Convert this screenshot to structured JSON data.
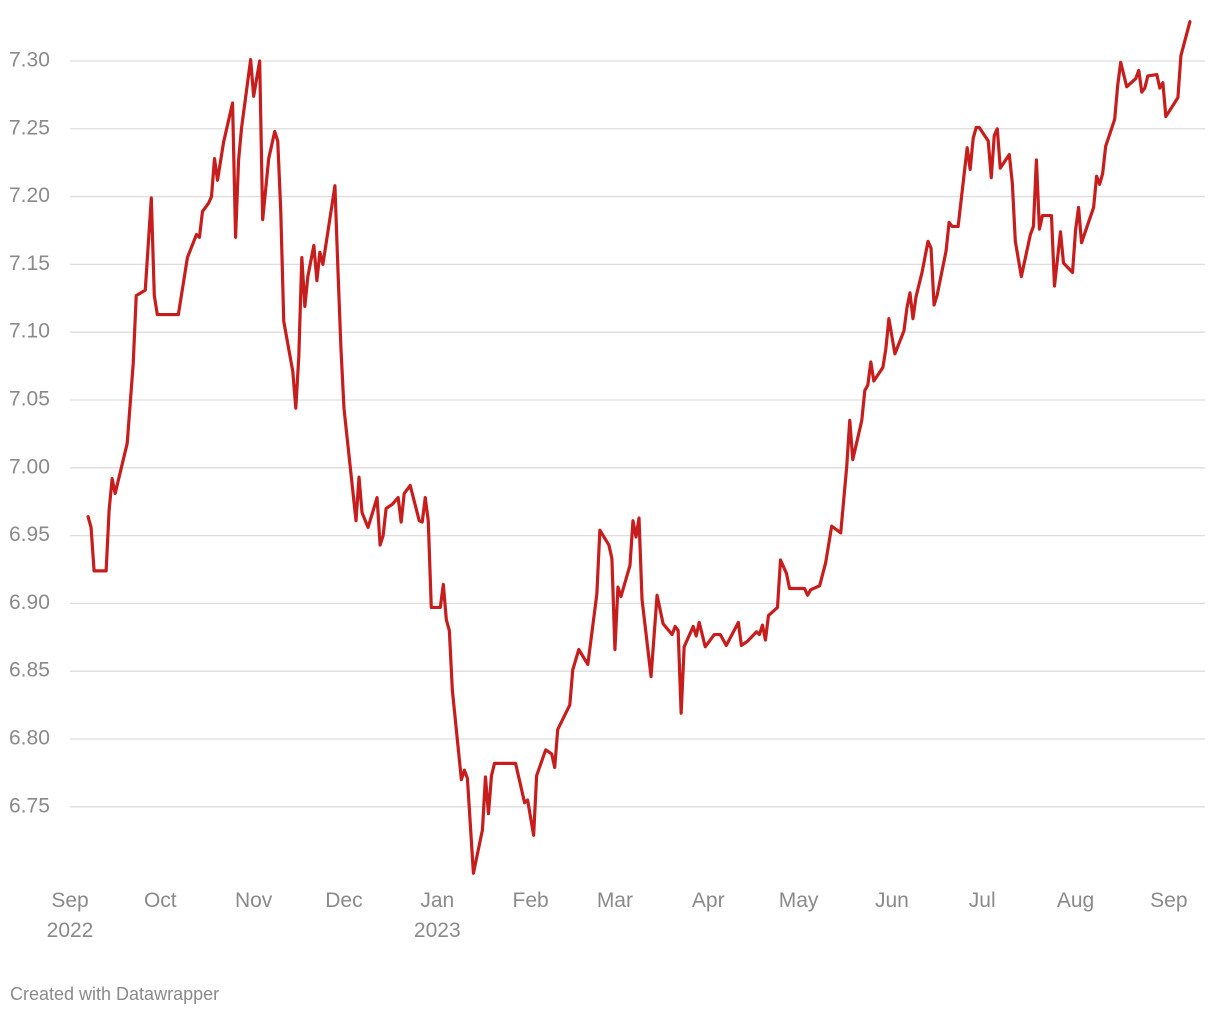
{
  "chart_data": {
    "type": "line",
    "color": "#c71e1d",
    "grid": true,
    "credit": "Created with Datawrapper",
    "xlim": [
      0,
      377
    ],
    "xticks": [
      {
        "value": 0,
        "label": "Sep\n2022"
      },
      {
        "value": 30,
        "label": "Oct"
      },
      {
        "value": 61,
        "label": "Nov"
      },
      {
        "value": 91,
        "label": "Dec"
      },
      {
        "value": 122,
        "label": "Jan\n2023"
      },
      {
        "value": 153,
        "label": "Feb"
      },
      {
        "value": 181,
        "label": "Mar"
      },
      {
        "value": 212,
        "label": "Apr"
      },
      {
        "value": 242,
        "label": "May"
      },
      {
        "value": 273,
        "label": "Jun"
      },
      {
        "value": 303,
        "label": "Jul"
      },
      {
        "value": 334,
        "label": "Aug"
      },
      {
        "value": 365,
        "label": "Sep"
      }
    ],
    "ylim": [
      6.7,
      7.33
    ],
    "yticks": [
      6.75,
      {
        "value": 6.8,
        "label": "6.80"
      },
      6.85,
      {
        "value": 6.9,
        "label": "6.90"
      },
      6.95,
      {
        "value": 7.0,
        "label": "7.00"
      },
      7.05,
      {
        "value": 7.1,
        "label": "7.10"
      },
      7.15,
      {
        "value": 7.2,
        "label": "7.20"
      },
      7.25,
      {
        "value": 7.3,
        "label": "7.30"
      }
    ],
    "x": [
      6,
      7,
      8,
      12,
      13,
      14,
      15,
      19,
      21,
      22,
      25,
      27,
      28,
      29,
      36,
      39,
      42,
      43,
      44,
      46,
      47,
      48,
      49,
      51,
      54,
      55,
      56,
      57,
      60,
      61,
      63,
      64,
      66,
      68,
      69,
      70,
      71,
      74,
      75,
      76,
      77,
      78,
      79,
      81,
      82,
      83,
      84,
      88,
      89,
      90,
      91,
      92,
      95,
      96,
      97,
      99,
      102,
      103,
      104,
      105,
      107,
      109,
      110,
      111,
      113,
      116,
      117,
      118,
      119,
      120,
      123,
      124,
      125,
      126,
      127,
      130,
      131,
      132,
      134,
      137,
      138,
      139,
      140,
      141,
      148,
      151,
      152,
      154,
      155,
      158,
      160,
      161,
      162,
      166,
      167,
      169,
      172,
      175,
      176,
      179,
      180,
      181,
      182,
      183,
      186,
      187,
      188,
      189,
      190,
      193,
      195,
      197,
      200,
      201,
      202,
      203,
      204,
      207,
      208,
      209,
      211,
      214,
      216,
      218,
      222,
      223,
      225,
      228,
      229,
      230,
      231,
      232,
      235,
      236,
      238,
      239,
      244,
      245,
      246,
      249,
      251,
      253,
      256,
      258,
      259,
      260,
      263,
      264,
      265,
      266,
      267,
      270,
      271,
      272,
      274,
      277,
      278,
      279,
      280,
      281,
      283,
      285,
      286,
      287,
      288,
      291,
      292,
      293,
      295,
      298,
      299,
      300,
      301,
      302,
      305,
      306,
      307,
      308,
      309,
      312,
      313,
      314,
      316,
      319,
      320,
      321,
      322,
      323,
      326,
      327,
      329,
      330,
      333,
      334,
      335,
      336,
      340,
      341,
      342,
      343,
      344,
      347,
      348,
      349,
      351,
      354,
      355,
      356,
      357,
      358,
      361,
      362,
      363,
      364,
      368,
      369,
      372
    ],
    "values": [
      6.964,
      6.956,
      6.924,
      6.924,
      6.969,
      6.992,
      6.981,
      7.018,
      7.077,
      7.127,
      7.131,
      7.199,
      7.127,
      7.113,
      7.113,
      7.155,
      7.172,
      7.17,
      7.189,
      7.195,
      7.2,
      7.228,
      7.212,
      7.24,
      7.269,
      7.17,
      7.227,
      7.251,
      7.301,
      7.274,
      7.3,
      7.183,
      7.228,
      7.248,
      7.241,
      7.19,
      7.108,
      7.071,
      7.044,
      7.082,
      7.155,
      7.119,
      7.141,
      7.164,
      7.138,
      7.159,
      7.15,
      7.208,
      7.146,
      7.088,
      7.044,
      7.023,
      6.961,
      6.993,
      6.967,
      6.956,
      6.978,
      6.943,
      6.95,
      6.97,
      6.973,
      6.978,
      6.96,
      6.981,
      6.987,
      6.961,
      6.96,
      6.978,
      6.961,
      6.897,
      6.897,
      6.914,
      6.888,
      6.88,
      6.836,
      6.77,
      6.777,
      6.771,
      6.701,
      6.733,
      6.772,
      6.745,
      6.773,
      6.782,
      6.782,
      6.753,
      6.755,
      6.729,
      6.773,
      6.792,
      6.789,
      6.779,
      6.807,
      6.825,
      6.851,
      6.866,
      6.855,
      6.907,
      6.954,
      6.943,
      6.933,
      6.866,
      6.912,
      6.905,
      6.928,
      6.961,
      6.949,
      6.963,
      6.903,
      6.846,
      6.906,
      6.885,
      6.877,
      6.883,
      6.88,
      6.819,
      6.868,
      6.883,
      6.876,
      6.886,
      6.868,
      6.877,
      6.877,
      6.869,
      6.886,
      6.869,
      6.872,
      6.879,
      6.877,
      6.884,
      6.873,
      6.891,
      6.897,
      6.932,
      6.922,
      6.911,
      6.911,
      6.906,
      6.91,
      6.913,
      6.93,
      6.957,
      6.952,
      7.001,
      7.035,
      7.006,
      7.035,
      7.057,
      7.061,
      7.078,
      7.064,
      7.074,
      7.088,
      7.11,
      7.084,
      7.101,
      7.118,
      7.129,
      7.11,
      7.126,
      7.144,
      7.167,
      7.162,
      7.12,
      7.127,
      7.16,
      7.181,
      7.178,
      7.178,
      7.236,
      7.22,
      7.243,
      7.251,
      7.251,
      7.241,
      7.214,
      7.245,
      7.25,
      7.221,
      7.231,
      7.21,
      7.167,
      7.141,
      7.172,
      7.178,
      7.227,
      7.176,
      7.186,
      7.186,
      7.134,
      7.174,
      7.151,
      7.144,
      7.175,
      7.192,
      7.166,
      7.192,
      7.215,
      7.209,
      7.217,
      7.237,
      7.257,
      7.282,
      7.299,
      7.281,
      7.287,
      7.293,
      7.277,
      7.28,
      7.289,
      7.29,
      7.28,
      7.284,
      7.259,
      7.273,
      7.304,
      7.329
    ]
  }
}
